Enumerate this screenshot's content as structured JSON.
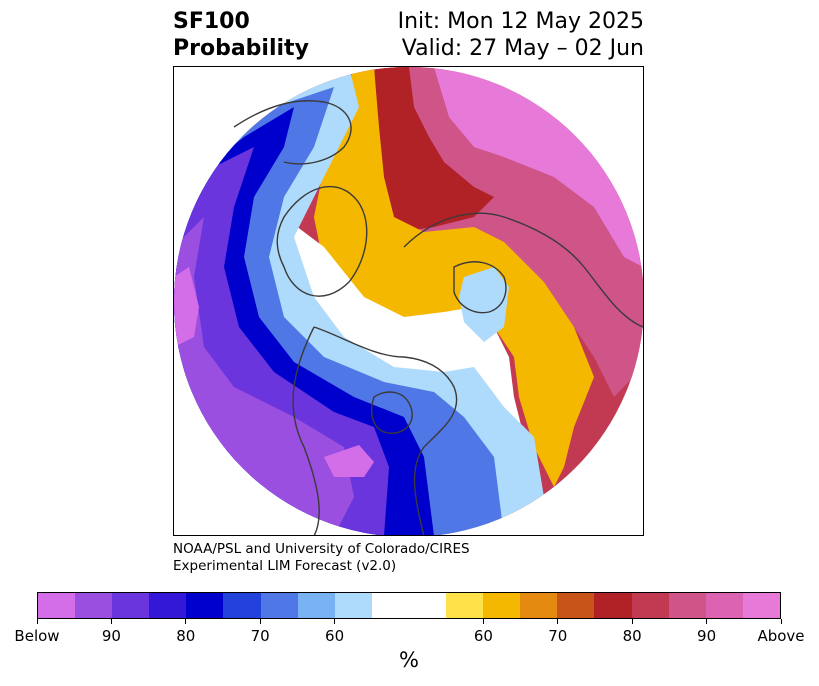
{
  "title": {
    "left_line1": "SF100",
    "left_line2": "Probability",
    "right_line1": "Init: Mon 12 May 2025",
    "right_line2": "Valid: 27 May – 02 Jun"
  },
  "credit": {
    "line1": "NOAA/PSL and University of Colorado/CIRES",
    "line2": "Experimental LIM Forecast (v2.0)"
  },
  "colorbar": {
    "unit": "%",
    "colors": [
      "#d46ee8",
      "#9a4fe0",
      "#6a35dc",
      "#3418d8",
      "#0000cc",
      "#2342dc",
      "#4f78e6",
      "#78b2f2",
      "#aedbfb",
      "#ffffff",
      "#ffe24a",
      "#f5b800",
      "#e48a10",
      "#c8541a",
      "#b02226",
      "#c23a52",
      "#cf5488",
      "#dc62b2",
      "#e77ad9"
    ],
    "tick_labels": [
      "Below",
      "90",
      "80",
      "70",
      "60",
      "60",
      "70",
      "80",
      "90",
      "Above"
    ]
  },
  "map": {
    "projection": "north-polar-stereographic",
    "palette": {
      "below_extreme": "#d46ee8",
      "below_90": "#9a4fe0",
      "below_85": "#6a35dc",
      "below_80": "#3418d8",
      "below_75": "#0000cc",
      "below_70": "#2342dc",
      "below_65": "#4f78e6",
      "below_60": "#78b2f2",
      "below_55": "#aedbfb",
      "neutral": "#ffffff",
      "above_55": "#ffe24a",
      "above_60": "#f5b800",
      "above_65": "#e48a10",
      "above_70": "#c8541a",
      "above_75": "#b02226",
      "above_80": "#c23a52",
      "above_85": "#cf5488",
      "above_90": "#dc62b2",
      "above_extreme": "#e77ad9",
      "coastline": "#3a3a3a"
    }
  }
}
